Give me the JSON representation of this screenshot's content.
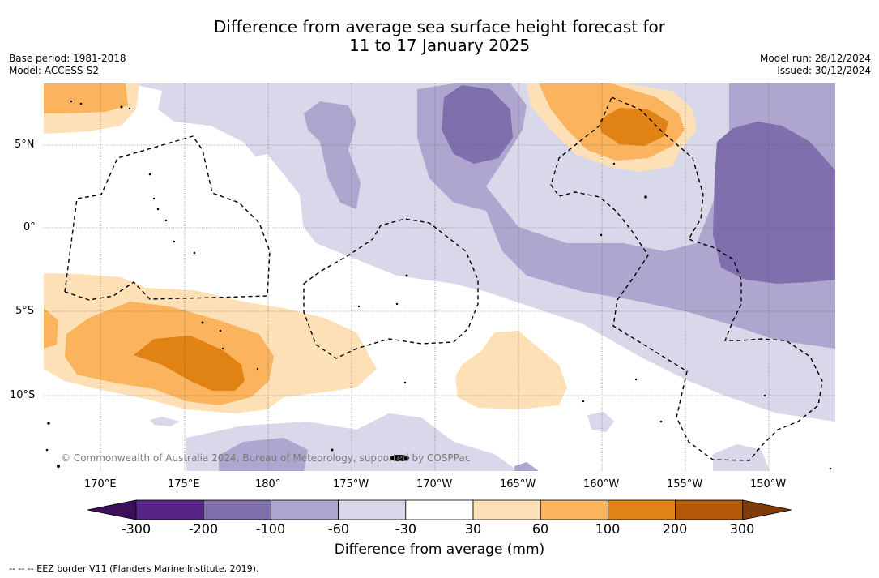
{
  "title_line1": "Difference from average sea surface height forecast for",
  "title_line2": "11 to 17 January 2025",
  "base_period": "Base period: 1981-2018",
  "model": "Model: ACCESS-S2",
  "model_run": "Model run: 28/12/2024",
  "issued": "Issued: 30/12/2024",
  "copyright": "© Commonwealth of Australia 2024, Bureau of Meteorology, supported by COSPPac",
  "footnote": "--  --  -- EEZ border V11 (Flanders Marine Institute, 2019).",
  "lat_labels": [
    "5°N",
    "0°",
    "5°S",
    "10°S"
  ],
  "lon_labels": [
    "170°E",
    "175°E",
    "180°",
    "175°W",
    "170°W",
    "165°W",
    "160°W",
    "155°W",
    "150°W"
  ],
  "colorbar": {
    "title": "Difference from average (mm)",
    "ticks": [
      "-300",
      "-200",
      "-100",
      "-60",
      "-30",
      "30",
      "60",
      "100",
      "200",
      "300"
    ],
    "colors": [
      "#3b0f5a",
      "#562487",
      "#7f70ad",
      "#aea6cf",
      "#d8d8ea",
      "#ffffff",
      "#fee0b6",
      "#fbb35d",
      "#e08214",
      "#b35806",
      "#7f3b08"
    ]
  }
}
